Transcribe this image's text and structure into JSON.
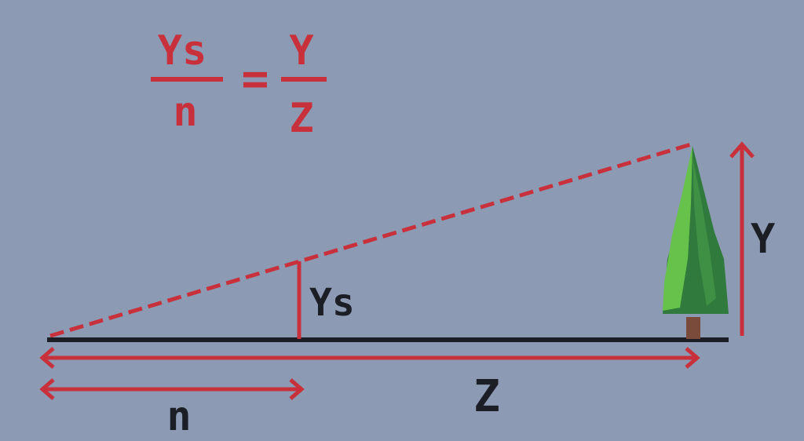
{
  "formula": {
    "left_numerator": "Ys",
    "left_denominator": "n",
    "equals": "=",
    "right_numerator": "Y",
    "right_denominator": "Z"
  },
  "labels": {
    "screen_height": "Ys",
    "object_height": "Y",
    "near_distance": "n",
    "far_distance": "Z"
  },
  "colors": {
    "background": "#8c9ab4",
    "accent_red": "#c8313b",
    "ground_line": "#1c1e26",
    "tree_dark": "#2f7a3c",
    "tree_light": "#66c24a",
    "trunk": "#7a4a3a"
  },
  "icons": {
    "tree": "pine-tree-icon"
  }
}
